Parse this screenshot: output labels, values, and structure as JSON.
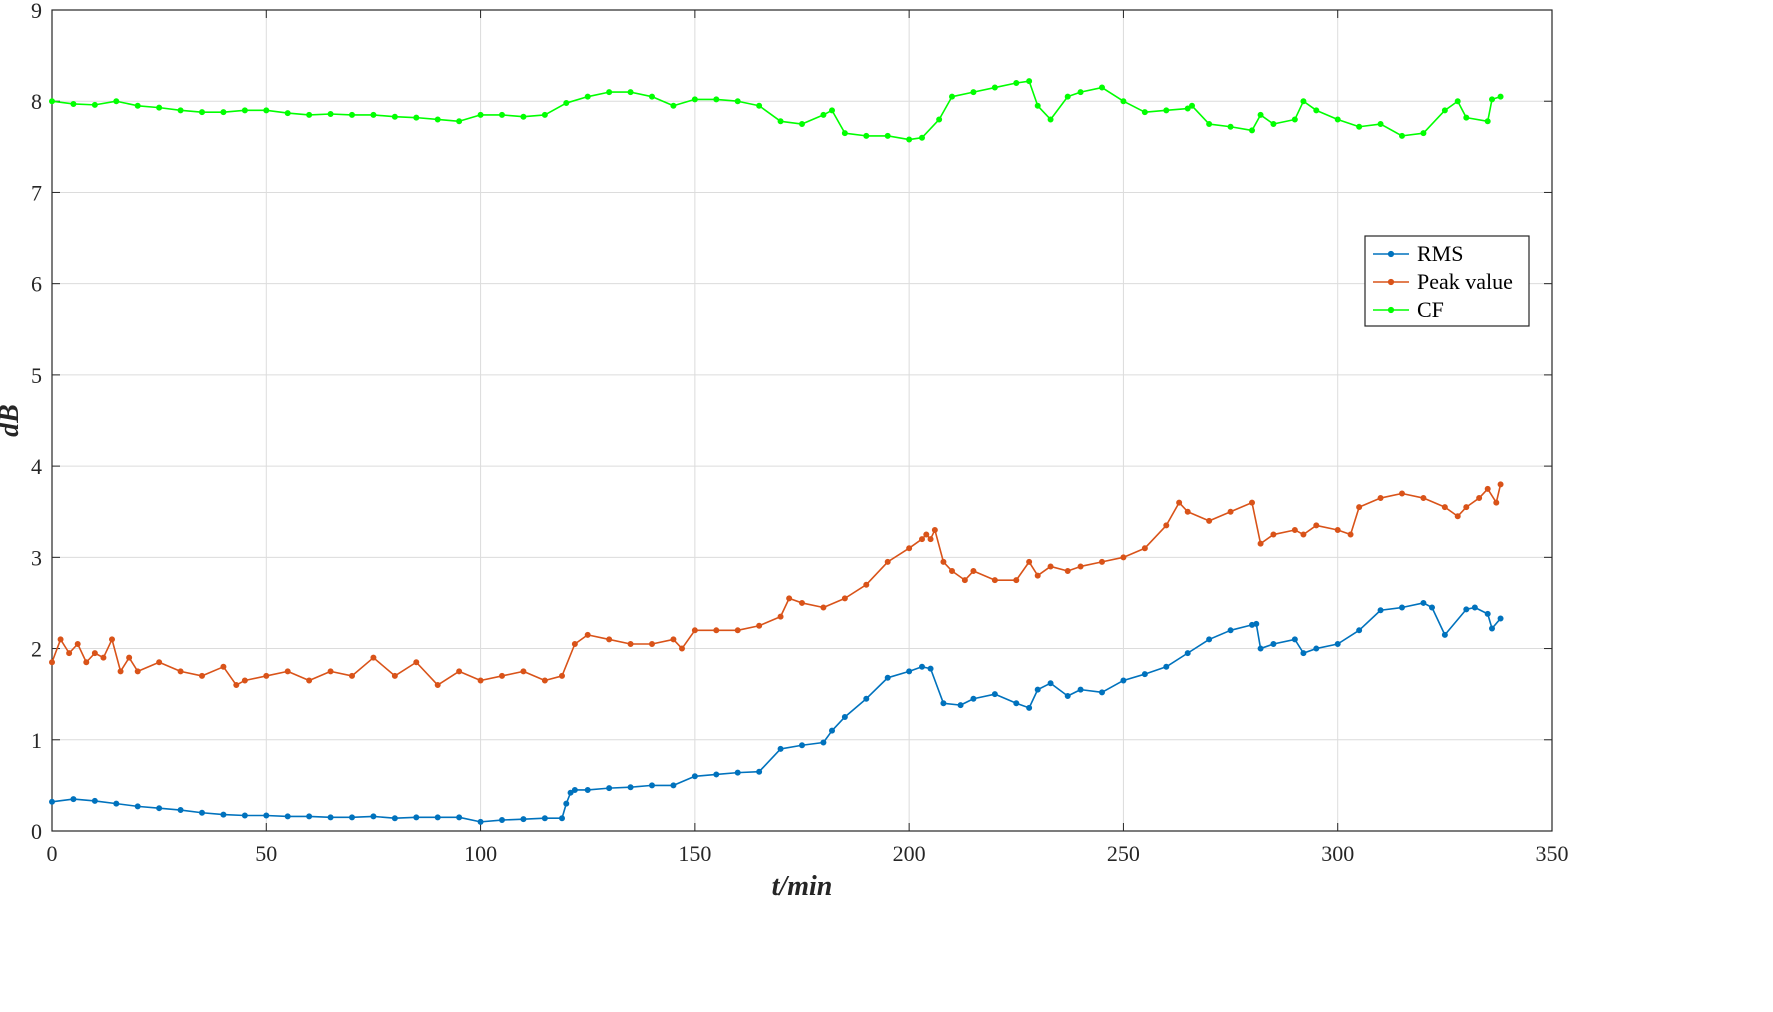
{
  "chart_data": {
    "type": "line",
    "title": "",
    "xlabel": "t/min",
    "ylabel": "dB",
    "xlim": [
      0,
      350
    ],
    "ylim": [
      0,
      9
    ],
    "xticks": [
      0,
      50,
      100,
      150,
      200,
      250,
      300,
      350
    ],
    "yticks": [
      0,
      1,
      2,
      3,
      4,
      5,
      6,
      7,
      8,
      9
    ],
    "grid": true,
    "legend_position": "right",
    "series": [
      {
        "name": "RMS",
        "color": "#0072BD",
        "marker": "circle",
        "x": [
          0,
          5,
          10,
          15,
          20,
          25,
          30,
          35,
          40,
          45,
          50,
          55,
          60,
          65,
          70,
          75,
          80,
          85,
          90,
          95,
          100,
          105,
          110,
          115,
          119,
          120,
          121,
          122,
          125,
          130,
          135,
          140,
          145,
          150,
          155,
          160,
          165,
          170,
          175,
          180,
          182,
          185,
          190,
          195,
          200,
          203,
          205,
          208,
          212,
          215,
          220,
          225,
          228,
          230,
          233,
          237,
          240,
          245,
          250,
          255,
          260,
          265,
          270,
          275,
          280,
          281,
          282,
          285,
          290,
          292,
          295,
          300,
          305,
          310,
          315,
          320,
          322,
          325,
          330,
          332,
          335,
          336,
          338
        ],
        "y": [
          0.32,
          0.35,
          0.33,
          0.3,
          0.27,
          0.25,
          0.23,
          0.2,
          0.18,
          0.17,
          0.17,
          0.16,
          0.16,
          0.15,
          0.15,
          0.16,
          0.14,
          0.15,
          0.15,
          0.15,
          0.1,
          0.12,
          0.13,
          0.14,
          0.14,
          0.3,
          0.42,
          0.45,
          0.45,
          0.47,
          0.48,
          0.5,
          0.5,
          0.6,
          0.62,
          0.64,
          0.65,
          0.9,
          0.94,
          0.97,
          1.1,
          1.25,
          1.45,
          1.68,
          1.75,
          1.8,
          1.78,
          1.4,
          1.38,
          1.45,
          1.5,
          1.4,
          1.35,
          1.55,
          1.62,
          1.48,
          1.55,
          1.52,
          1.65,
          1.72,
          1.8,
          1.95,
          2.1,
          2.2,
          2.26,
          2.27,
          2.0,
          2.05,
          2.1,
          1.95,
          2.0,
          2.05,
          2.2,
          2.42,
          2.45,
          2.5,
          2.45,
          2.15,
          2.43,
          2.45,
          2.38,
          2.22,
          2.33
        ]
      },
      {
        "name": "Peak value",
        "color": "#D95319",
        "marker": "circle",
        "x": [
          0,
          2,
          4,
          6,
          8,
          10,
          12,
          14,
          16,
          18,
          20,
          25,
          30,
          35,
          40,
          43,
          45,
          50,
          55,
          60,
          65,
          70,
          75,
          80,
          85,
          90,
          95,
          100,
          105,
          110,
          115,
          119,
          122,
          125,
          130,
          135,
          140,
          145,
          147,
          150,
          155,
          160,
          165,
          170,
          172,
          175,
          180,
          185,
          190,
          195,
          200,
          203,
          204,
          205,
          206,
          208,
          210,
          213,
          215,
          220,
          225,
          228,
          230,
          233,
          237,
          240,
          245,
          250,
          255,
          260,
          263,
          265,
          270,
          275,
          280,
          282,
          285,
          290,
          292,
          295,
          300,
          303,
          305,
          310,
          315,
          320,
          325,
          328,
          330,
          333,
          335,
          337,
          338
        ],
        "y": [
          1.85,
          2.1,
          1.95,
          2.05,
          1.85,
          1.95,
          1.9,
          2.1,
          1.75,
          1.9,
          1.75,
          1.85,
          1.75,
          1.7,
          1.8,
          1.6,
          1.65,
          1.7,
          1.75,
          1.65,
          1.75,
          1.7,
          1.9,
          1.7,
          1.85,
          1.6,
          1.75,
          1.65,
          1.7,
          1.75,
          1.65,
          1.7,
          2.05,
          2.15,
          2.1,
          2.05,
          2.05,
          2.1,
          2.0,
          2.2,
          2.2,
          2.2,
          2.25,
          2.35,
          2.55,
          2.5,
          2.45,
          2.55,
          2.7,
          2.95,
          3.1,
          3.2,
          3.25,
          3.2,
          3.3,
          2.95,
          2.85,
          2.75,
          2.85,
          2.75,
          2.75,
          2.95,
          2.8,
          2.9,
          2.85,
          2.9,
          2.95,
          3.0,
          3.1,
          3.35,
          3.6,
          3.5,
          3.4,
          3.5,
          3.6,
          3.15,
          3.25,
          3.3,
          3.25,
          3.35,
          3.3,
          3.25,
          3.55,
          3.65,
          3.7,
          3.65,
          3.55,
          3.45,
          3.55,
          3.65,
          3.75,
          3.6,
          3.8
        ]
      },
      {
        "name": "CF",
        "color": "#00FF00",
        "marker": "circle",
        "x": [
          0,
          5,
          10,
          15,
          20,
          25,
          30,
          35,
          40,
          45,
          50,
          55,
          60,
          65,
          70,
          75,
          80,
          85,
          90,
          95,
          100,
          105,
          110,
          115,
          120,
          125,
          130,
          135,
          140,
          145,
          150,
          155,
          160,
          165,
          170,
          175,
          180,
          182,
          185,
          190,
          195,
          200,
          203,
          207,
          210,
          215,
          220,
          225,
          228,
          230,
          233,
          237,
          240,
          245,
          250,
          255,
          260,
          265,
          266,
          270,
          275,
          280,
          282,
          285,
          290,
          292,
          295,
          300,
          305,
          310,
          315,
          320,
          325,
          328,
          330,
          335,
          336,
          338
        ],
        "y": [
          8.0,
          7.97,
          7.96,
          8.0,
          7.95,
          7.93,
          7.9,
          7.88,
          7.88,
          7.9,
          7.9,
          7.87,
          7.85,
          7.86,
          7.85,
          7.85,
          7.83,
          7.82,
          7.8,
          7.78,
          7.85,
          7.85,
          7.83,
          7.85,
          7.98,
          8.05,
          8.1,
          8.1,
          8.05,
          7.95,
          8.02,
          8.02,
          8.0,
          7.95,
          7.78,
          7.75,
          7.85,
          7.9,
          7.65,
          7.62,
          7.62,
          7.58,
          7.6,
          7.8,
          8.05,
          8.1,
          8.15,
          8.2,
          8.22,
          7.95,
          7.8,
          8.05,
          8.1,
          8.15,
          8.0,
          7.88,
          7.9,
          7.92,
          7.95,
          7.75,
          7.72,
          7.68,
          7.85,
          7.75,
          7.8,
          8.0,
          7.9,
          7.8,
          7.72,
          7.75,
          7.62,
          7.65,
          7.9,
          8.0,
          7.82,
          7.78,
          8.02,
          8.05
        ]
      }
    ]
  }
}
